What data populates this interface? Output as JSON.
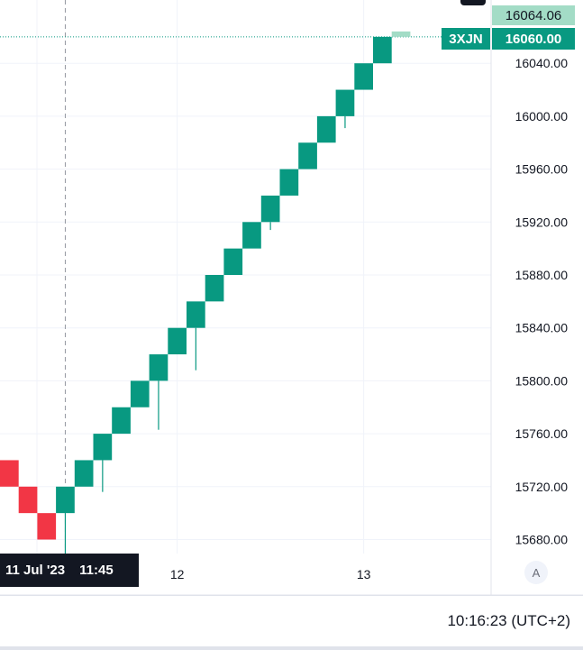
{
  "chart_data": {
    "type": "renko",
    "symbol_badge": "3XJN",
    "last_price": "16060.00",
    "crosshair_price": "16064.06",
    "crosshair_time": {
      "date": "11 Jul '23",
      "time": "11:45"
    },
    "box_size": 20,
    "ylim": [
      15668,
      16080
    ],
    "price_ticks": [
      "15680.00",
      "15720.00",
      "15760.00",
      "15800.00",
      "15840.00",
      "15880.00",
      "15920.00",
      "15960.00",
      "16000.00",
      "16040.00"
    ],
    "time_ticks": [
      {
        "label": "12",
        "brick_index": 9
      },
      {
        "label": "13",
        "brick_index": 19
      }
    ],
    "bricks": [
      {
        "open": 15740,
        "close": 15720,
        "direction": "down"
      },
      {
        "open": 15720,
        "close": 15700,
        "direction": "down"
      },
      {
        "open": 15700,
        "close": 15680,
        "direction": "down"
      },
      {
        "open": 15700,
        "close": 15720,
        "direction": "up",
        "wick_low": 15669
      },
      {
        "open": 15720,
        "close": 15740,
        "direction": "up"
      },
      {
        "open": 15740,
        "close": 15760,
        "direction": "up",
        "wick_low": 15716
      },
      {
        "open": 15760,
        "close": 15780,
        "direction": "up"
      },
      {
        "open": 15780,
        "close": 15800,
        "direction": "up"
      },
      {
        "open": 15800,
        "close": 15820,
        "direction": "up",
        "wick_low": 15763
      },
      {
        "open": 15820,
        "close": 15840,
        "direction": "up"
      },
      {
        "open": 15840,
        "close": 15860,
        "direction": "up",
        "wick_low": 15808
      },
      {
        "open": 15860,
        "close": 15880,
        "direction": "up"
      },
      {
        "open": 15880,
        "close": 15900,
        "direction": "up"
      },
      {
        "open": 15900,
        "close": 15920,
        "direction": "up"
      },
      {
        "open": 15920,
        "close": 15940,
        "direction": "up",
        "wick_low": 15914
      },
      {
        "open": 15940,
        "close": 15960,
        "direction": "up"
      },
      {
        "open": 15960,
        "close": 15980,
        "direction": "up"
      },
      {
        "open": 15980,
        "close": 16000,
        "direction": "up"
      },
      {
        "open": 16000,
        "close": 16020,
        "direction": "up",
        "wick_low": 15991
      },
      {
        "open": 16020,
        "close": 16040,
        "direction": "up"
      },
      {
        "open": 16040,
        "close": 16060,
        "direction": "up"
      }
    ],
    "projected_brick": {
      "open": 16060,
      "close": 16064.06,
      "direction": "up"
    },
    "colors": {
      "up": "#089981",
      "down": "#f23645",
      "projected": "#a3dcc6",
      "grid": "#f0f3fa",
      "crosshair": "#9598a1",
      "last_price_line": "#089981"
    },
    "grid": true
  },
  "ui": {
    "auto_scale_label": "A",
    "clock": "10:16:23 (UTC+2)"
  }
}
